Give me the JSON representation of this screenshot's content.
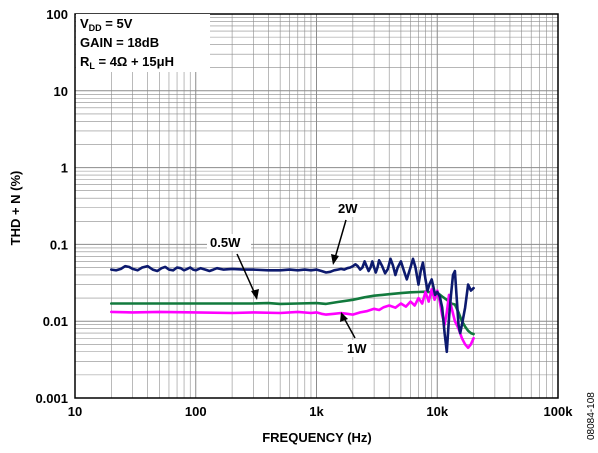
{
  "figure_id": "08084-108",
  "chart_data": {
    "type": "line",
    "title": "",
    "xlabel": "FREQUENCY (Hz)",
    "ylabel": "THD + N (%)",
    "x_scale": "log",
    "y_scale": "log",
    "xlim": [
      10,
      100000
    ],
    "ylim": [
      0.001,
      100
    ],
    "x_ticks": [
      {
        "value": 10,
        "label": "10"
      },
      {
        "value": 100,
        "label": "100"
      },
      {
        "value": 1000,
        "label": "1k"
      },
      {
        "value": 10000,
        "label": "10k"
      },
      {
        "value": 100000,
        "label": "100k"
      }
    ],
    "y_ticks": [
      {
        "value": 0.001,
        "label": "0.001"
      },
      {
        "value": 0.01,
        "label": "0.01"
      },
      {
        "value": 0.1,
        "label": "0.1"
      },
      {
        "value": 1,
        "label": "1"
      },
      {
        "value": 10,
        "label": "10"
      },
      {
        "value": 100,
        "label": "100"
      }
    ],
    "grid": true,
    "conditions": {
      "vdd_prefix": "V",
      "vdd_sub": "DD",
      "vdd_suffix": " = 5V",
      "gain": "GAIN = 18dB",
      "rl_prefix": "R",
      "rl_sub": "L",
      "rl_suffix": " = 4Ω + 15μH"
    },
    "series": [
      {
        "name": "2W",
        "color": "#0d1a6e",
        "x": [
          20,
          22,
          24,
          26,
          28,
          30,
          33,
          36,
          40,
          44,
          48,
          52,
          56,
          60,
          65,
          70,
          75,
          80,
          85,
          90,
          95,
          100,
          110,
          120,
          130,
          140,
          150,
          170,
          200,
          250,
          300,
          400,
          500,
          600,
          700,
          800,
          900,
          1000,
          1100,
          1200,
          1300,
          1400,
          1500,
          1600,
          1700,
          1800,
          1900,
          2000,
          2100,
          2200,
          2300,
          2400,
          2500,
          2600,
          2700,
          2800,
          2900,
          3000,
          3100,
          3200,
          3300,
          3500,
          3700,
          3900,
          4100,
          4300,
          4500,
          4700,
          5000,
          5300,
          5600,
          6000,
          6300,
          6600,
          7000,
          7300,
          7600,
          8000,
          8300,
          8600,
          9000,
          9300,
          9600,
          10000,
          10500,
          11000,
          11500,
          12000,
          12500,
          13000,
          13500,
          14000,
          14500,
          15000,
          15500,
          16000,
          17000,
          18000,
          19000,
          20000
        ],
        "y": [
          0.047,
          0.046,
          0.048,
          0.052,
          0.051,
          0.048,
          0.046,
          0.05,
          0.052,
          0.047,
          0.045,
          0.049,
          0.051,
          0.047,
          0.046,
          0.05,
          0.049,
          0.046,
          0.048,
          0.05,
          0.047,
          0.046,
          0.049,
          0.047,
          0.045,
          0.047,
          0.049,
          0.047,
          0.048,
          0.047,
          0.047,
          0.046,
          0.046,
          0.047,
          0.046,
          0.047,
          0.046,
          0.047,
          0.045,
          0.043,
          0.044,
          0.046,
          0.047,
          0.048,
          0.047,
          0.049,
          0.05,
          0.052,
          0.055,
          0.052,
          0.047,
          0.05,
          0.06,
          0.052,
          0.045,
          0.05,
          0.06,
          0.05,
          0.043,
          0.05,
          0.062,
          0.052,
          0.042,
          0.048,
          0.065,
          0.053,
          0.04,
          0.05,
          0.06,
          0.045,
          0.035,
          0.05,
          0.065,
          0.05,
          0.03,
          0.045,
          0.058,
          0.035,
          0.025,
          0.03,
          0.035,
          0.028,
          0.022,
          0.024,
          0.021,
          0.015,
          0.007,
          0.004,
          0.011,
          0.022,
          0.04,
          0.045,
          0.02,
          0.009,
          0.007,
          0.009,
          0.015,
          0.03,
          0.025,
          0.027
        ]
      },
      {
        "name": "0.5W",
        "color": "#127a3d",
        "x": [
          20,
          30,
          50,
          100,
          200,
          300,
          400,
          500,
          700,
          1000,
          1200,
          1500,
          2000,
          2500,
          3000,
          4000,
          5000,
          6000,
          7000,
          8000,
          9000,
          10000,
          11000,
          12000,
          13000,
          14000,
          15000,
          16000,
          17000,
          18000,
          19000,
          20000
        ],
        "y": [
          0.017,
          0.017,
          0.017,
          0.017,
          0.017,
          0.017,
          0.0172,
          0.0168,
          0.017,
          0.0172,
          0.0168,
          0.0178,
          0.019,
          0.0205,
          0.0215,
          0.0225,
          0.0232,
          0.0238,
          0.024,
          0.0242,
          0.0238,
          0.0235,
          0.021,
          0.019,
          0.017,
          0.0165,
          0.013,
          0.01,
          0.0085,
          0.0075,
          0.007,
          0.0068
        ]
      },
      {
        "name": "1W",
        "color": "#ff00ff",
        "x": [
          20,
          30,
          50,
          100,
          200,
          300,
          500,
          700,
          900,
          1000,
          1100,
          1200,
          1400,
          1600,
          1800,
          2000,
          2300,
          2600,
          3000,
          3300,
          3600,
          4000,
          4500,
          5000,
          5500,
          6000,
          6500,
          7000,
          7500,
          8000,
          8500,
          9000,
          9500,
          10000,
          10500,
          11000,
          11500,
          12000,
          12500,
          13000,
          14000,
          15000,
          16000,
          17000,
          18000,
          19000,
          20000
        ],
        "y": [
          0.0132,
          0.013,
          0.0132,
          0.013,
          0.0128,
          0.013,
          0.0128,
          0.0132,
          0.0128,
          0.013,
          0.0125,
          0.0122,
          0.0125,
          0.0128,
          0.0125,
          0.0122,
          0.013,
          0.0135,
          0.0145,
          0.014,
          0.0152,
          0.016,
          0.015,
          0.017,
          0.0155,
          0.018,
          0.016,
          0.02,
          0.017,
          0.024,
          0.018,
          0.026,
          0.019,
          0.025,
          0.018,
          0.012,
          0.009,
          0.013,
          0.022,
          0.016,
          0.01,
          0.008,
          0.006,
          0.005,
          0.0045,
          0.005,
          0.006
        ]
      }
    ],
    "annotations": [
      {
        "id": "label-2w",
        "text": "2W"
      },
      {
        "id": "label-05w",
        "text": "0.5W"
      },
      {
        "id": "label-1w",
        "text": "1W"
      }
    ]
  }
}
